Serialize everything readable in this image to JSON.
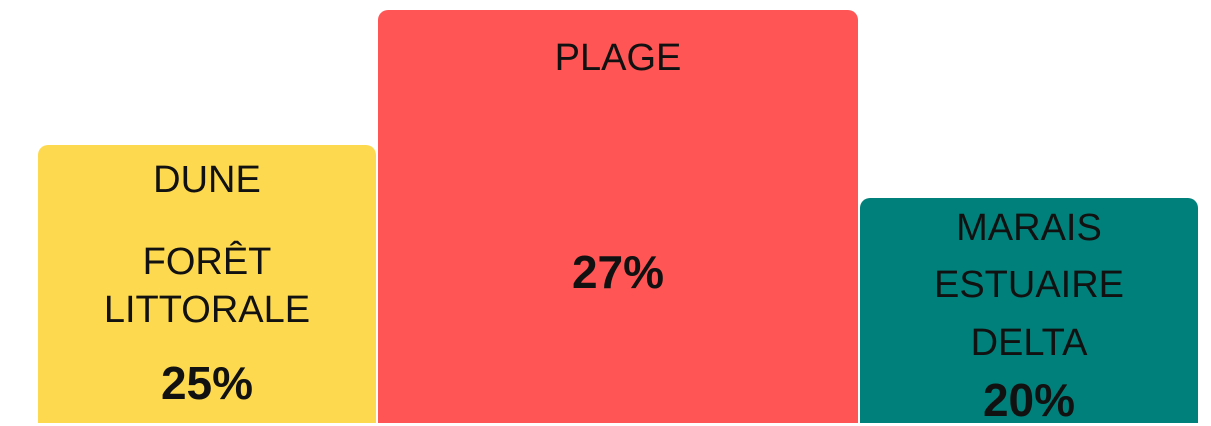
{
  "boxes": [
    {
      "lines": [
        "DUNE",
        "FORÊT",
        "LITTORALE"
      ],
      "percent": "25%"
    },
    {
      "lines": [
        "PLAGE"
      ],
      "percent": "27%"
    },
    {
      "lines": [
        "MARAIS",
        "ESTUAIRE",
        "DELTA"
      ],
      "percent": "20%"
    }
  ]
}
